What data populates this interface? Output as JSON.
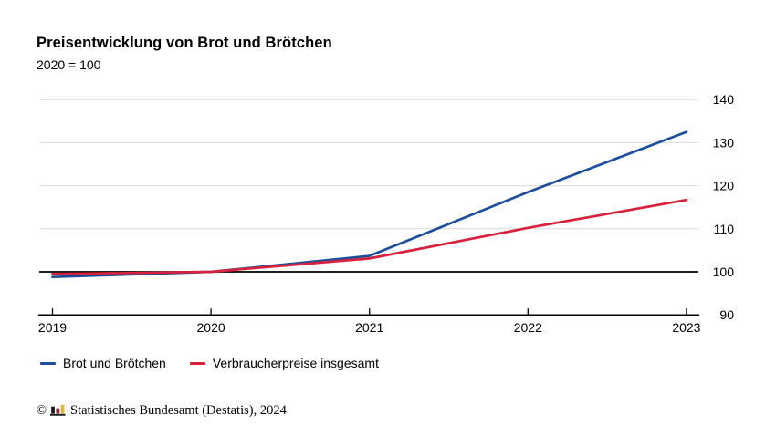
{
  "header": {
    "title": "Preisentwicklung von Brot und Brötchen",
    "subtitle": "2020 = 100"
  },
  "chart_data": {
    "type": "line",
    "title": "Preisentwicklung von Brot und Brötchen",
    "subtitle": "2020 = 100",
    "x": [
      2019,
      2020,
      2021,
      2022,
      2023
    ],
    "series": [
      {
        "name": "Brot und Brötchen",
        "color": "#1d4e9b",
        "values": [
          98.8,
          100,
          103.7,
          118.5,
          132.5
        ]
      },
      {
        "name": "Verbraucherpreise insgesamt",
        "color": "#d8223c",
        "values": [
          99.5,
          100,
          103.1,
          110.2,
          116.7
        ]
      }
    ],
    "ylim": [
      90,
      140
    ],
    "yticks": [
      90,
      100,
      110,
      120,
      130,
      140
    ],
    "baseline_value": 100,
    "grid_on": true,
    "grid_color": "#d9d9d9",
    "axis_color": "#000000",
    "legend_position": "bottom-left",
    "xlabel": "",
    "ylabel": ""
  },
  "legend": {
    "items": [
      {
        "label": "Brot und Brötchen",
        "color": "#1d4e9b"
      },
      {
        "label": "Verbraucherpreise insgesamt",
        "color": "#d8223c"
      }
    ]
  },
  "footer": {
    "copyright": "©",
    "source": "Statistisches Bundesamt (Destatis), 2024",
    "logo": "destatis-bars-logo",
    "logo_colors": {
      "bar1": "#1a1a1a",
      "bar2": "#9b1c2e",
      "bar3": "#e3bb2a",
      "base": "#1a1a1a"
    }
  }
}
